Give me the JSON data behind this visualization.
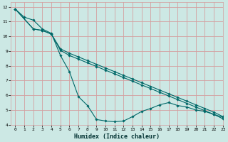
{
  "xlabel": "Humidex (Indice chaleur)",
  "bg_color": "#cce8e4",
  "grid_color": "#d4a0a0",
  "line_color": "#006868",
  "xlim": [
    -0.5,
    23
  ],
  "ylim": [
    4,
    12.3
  ],
  "xticks": [
    0,
    1,
    2,
    3,
    4,
    5,
    6,
    7,
    8,
    9,
    10,
    11,
    12,
    13,
    14,
    15,
    16,
    17,
    18,
    19,
    20,
    21,
    22,
    23
  ],
  "yticks": [
    4,
    5,
    6,
    7,
    8,
    9,
    10,
    11,
    12
  ],
  "line1_x": [
    0,
    1,
    2,
    3,
    4,
    5,
    6,
    7,
    8,
    9,
    10,
    11,
    12,
    13,
    14,
    15,
    16,
    17,
    18,
    19,
    20,
    21,
    22,
    23
  ],
  "line1_y": [
    11.85,
    11.3,
    11.1,
    10.5,
    10.2,
    8.7,
    7.6,
    5.9,
    5.3,
    4.35,
    4.25,
    4.2,
    4.25,
    4.55,
    4.9,
    5.1,
    5.35,
    5.5,
    5.3,
    5.2,
    5.0,
    4.9,
    4.7,
    4.5
  ],
  "line2_x": [
    0,
    2,
    3,
    4,
    5,
    6,
    7,
    8,
    9,
    10,
    11,
    12,
    13,
    14,
    15,
    16,
    17,
    18,
    19,
    20,
    21,
    22,
    23
  ],
  "line2_y": [
    11.85,
    10.5,
    10.4,
    10.15,
    9.15,
    8.85,
    8.6,
    8.35,
    8.1,
    7.85,
    7.6,
    7.35,
    7.1,
    6.85,
    6.6,
    6.35,
    6.1,
    5.85,
    5.6,
    5.35,
    5.1,
    4.85,
    4.55
  ],
  "line3_x": [
    0,
    2,
    3,
    4,
    5,
    6,
    7,
    8,
    9,
    10,
    11,
    12,
    13,
    14,
    15,
    16,
    17,
    18,
    19,
    20,
    21,
    22,
    23
  ],
  "line3_y": [
    11.85,
    10.5,
    10.4,
    10.15,
    9.05,
    8.7,
    8.45,
    8.2,
    7.95,
    7.7,
    7.45,
    7.2,
    6.95,
    6.7,
    6.45,
    6.2,
    5.95,
    5.7,
    5.45,
    5.2,
    4.95,
    4.7,
    4.4
  ]
}
